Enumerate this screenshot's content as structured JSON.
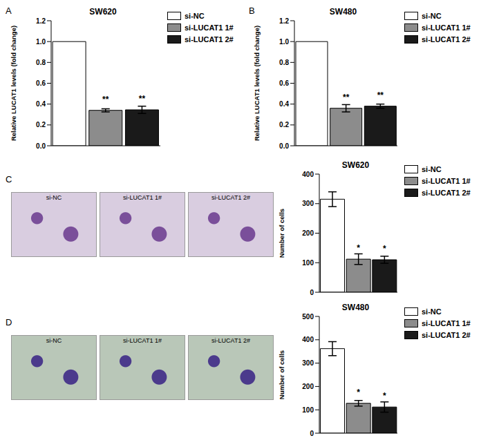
{
  "chart_data": [
    {
      "type": "bar",
      "panel": "A",
      "title": "SW620",
      "y_label": "Relative LUCAT1 levels (fold change)",
      "categories": [
        "si-NC",
        "si-LUCAT1 1#",
        "si-LUCAT1 2#"
      ],
      "values": [
        1.0,
        0.34,
        0.345
      ],
      "errors": [
        0,
        0.015,
        0.035
      ],
      "annotations": [
        null,
        "**",
        "**"
      ],
      "colors": [
        "#ffffff",
        "#8c8c8c",
        "#1a1a1a"
      ],
      "ylim": [
        0,
        1.2
      ],
      "yticks": [
        {
          "value": 0,
          "label": "0.0"
        },
        0.2,
        0.4,
        0.6,
        0.8,
        {
          "value": 1,
          "label": "1.0"
        },
        1.2
      ],
      "legend": "upper right",
      "tick_labels": "y"
    },
    {
      "type": "bar",
      "panel": "B",
      "title": "SW480",
      "y_label": "Relative LUCAT1 levels (fold change)",
      "categories": [
        "si-NC",
        "si-LUCAT1 1#",
        "si-LUCAT1 2#"
      ],
      "values": [
        1.0,
        0.36,
        0.38
      ],
      "errors": [
        0,
        0.035,
        0.02
      ],
      "annotations": [
        null,
        "**",
        "**"
      ],
      "colors": [
        "#ffffff",
        "#8c8c8c",
        "#1a1a1a"
      ],
      "ylim": [
        0,
        1.2
      ],
      "yticks": [
        {
          "value": 0,
          "label": "0.0"
        },
        0.2,
        0.4,
        0.6,
        0.8,
        {
          "value": 1,
          "label": "1.0"
        },
        1.2
      ],
      "legend": "upper right",
      "tick_labels": "y"
    },
    {
      "type": "bar",
      "panel": "C",
      "title": "SW620",
      "y_label": "Number of cells",
      "image_labels": [
        "si-NC",
        "si-LUCAT1 1#",
        "si-LUCAT1 2#"
      ],
      "categories": [
        "si-NC",
        "si-LUCAT1 1#",
        "si-LUCAT1 2#"
      ],
      "values": [
        315,
        112,
        110
      ],
      "errors": [
        25,
        18,
        12
      ],
      "annotations": [
        null,
        "*",
        "*"
      ],
      "colors": [
        "#ffffff",
        "#8c8c8c",
        "#1a1a1a"
      ],
      "ylim": [
        0,
        400
      ],
      "yticks": [
        0,
        100,
        200,
        300,
        400
      ],
      "legend": "upper right",
      "tick_labels": "y"
    },
    {
      "type": "bar",
      "panel": "D",
      "title": "SW480",
      "y_label": "Number of cells",
      "image_labels": [
        "si-NC",
        "si-LUCAT1 1#",
        "si-LUCAT1 2#"
      ],
      "categories": [
        "si-NC",
        "si-LUCAT1 1#",
        "si-LUCAT1 2#"
      ],
      "values": [
        362,
        128,
        112
      ],
      "errors": [
        30,
        12,
        22
      ],
      "annotations": [
        null,
        "*",
        "*"
      ],
      "colors": [
        "#ffffff",
        "#8c8c8c",
        "#1a1a1a"
      ],
      "ylim": [
        0,
        500
      ],
      "yticks": [
        0,
        100,
        200,
        300,
        400,
        500
      ],
      "legend": "upper right",
      "tick_labels": "y"
    }
  ]
}
